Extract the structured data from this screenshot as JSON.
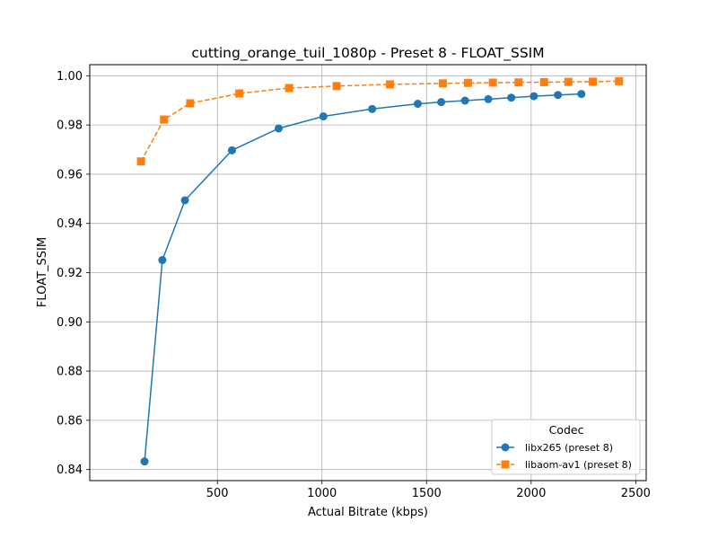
{
  "chart_data": {
    "type": "line",
    "title": "cutting_orange_tuil_1080p - Preset 8 - FLOAT_SSIM",
    "xlabel": "Actual Bitrate (kbps)",
    "ylabel": "FLOAT_SSIM",
    "xlim": [
      -110,
      2550
    ],
    "ylim": [
      0.8355,
      1.0045
    ],
    "xticks": [
      500,
      1000,
      1500,
      2000,
      2500
    ],
    "xtick_labels": [
      "500",
      "1000",
      "1500",
      "2000",
      "2500"
    ],
    "yticks": [
      0.84,
      0.86,
      0.88,
      0.9,
      0.92,
      0.94,
      0.96,
      0.98,
      1.0
    ],
    "ytick_labels": [
      "0.84",
      "0.86",
      "0.88",
      "0.90",
      "0.92",
      "0.94",
      "0.96",
      "0.98",
      "1.00"
    ],
    "grid": true,
    "legend": {
      "title": "Codec",
      "position": "lower-right"
    },
    "series": [
      {
        "name": "libx265 (preset 8)",
        "color": "#1f77b4",
        "marker": "circle",
        "linestyle": "solid",
        "x": [
          152,
          237,
          345,
          570,
          793,
          1007,
          1240,
          1458,
          1570,
          1684,
          1795,
          1905,
          2013,
          2128,
          2240
        ],
        "y": [
          0.8433,
          0.9251,
          0.9494,
          0.9697,
          0.9786,
          0.9835,
          0.9865,
          0.9886,
          0.9893,
          0.9899,
          0.9905,
          0.9911,
          0.9917,
          0.9922,
          0.9926
        ]
      },
      {
        "name": "libaom-av1 (preset 8)",
        "color": "#ff7f0e",
        "marker": "square",
        "linestyle": "dashed",
        "x": [
          135,
          245,
          370,
          605,
          843,
          1070,
          1325,
          1578,
          1698,
          1817,
          1940,
          2062,
          2178,
          2295,
          2420
        ],
        "y": [
          0.9652,
          0.9822,
          0.9888,
          0.9928,
          0.995,
          0.9958,
          0.9965,
          0.9969,
          0.9971,
          0.9972,
          0.9973,
          0.9974,
          0.9975,
          0.9976,
          0.9978
        ]
      }
    ]
  }
}
